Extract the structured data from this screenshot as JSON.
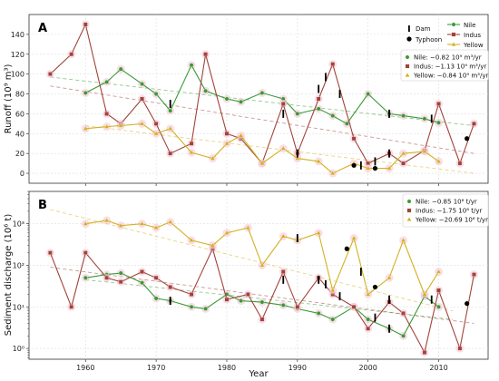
{
  "figure": {
    "shared_xlabel": "Year"
  },
  "chart_data": [
    {
      "type": "line",
      "panel": "A",
      "ylabel": "Runoff (10⁹ m³)",
      "xlim": [
        1952,
        2017
      ],
      "ylim": [
        -10,
        160
      ],
      "yticks": [
        0,
        20,
        40,
        60,
        80,
        100,
        120,
        140
      ],
      "xticks": [
        1960,
        1970,
        1980,
        1990,
        2000,
        2010
      ],
      "yscale": "linear",
      "grid": true,
      "series": [
        {
          "name": "Nile",
          "color": "#3a9a35",
          "marker": "circle",
          "x": [
            1960,
            1963,
            1965,
            1968,
            1970,
            1972,
            1975,
            1977,
            1980,
            1982,
            1985,
            1988,
            1990,
            1993,
            1995,
            1997,
            2000,
            2003,
            2005,
            2008,
            2010
          ],
          "y": [
            81,
            92,
            105,
            90,
            80,
            63,
            109,
            83,
            75,
            72,
            81,
            75,
            60,
            65,
            58,
            50,
            80,
            60,
            58,
            55,
            51
          ]
        },
        {
          "name": "Indus",
          "color": "#a0443a",
          "marker": "square",
          "x": [
            1955,
            1958,
            1960,
            1963,
            1965,
            1968,
            1970,
            1972,
            1975,
            1977,
            1980,
            1982,
            1985,
            1988,
            1990,
            1993,
            1995,
            1998,
            2000,
            2003,
            2005,
            2008,
            2010,
            2013,
            2015
          ],
          "y": [
            100,
            120,
            150,
            60,
            50,
            75,
            50,
            20,
            30,
            120,
            40,
            35,
            10,
            70,
            20,
            75,
            110,
            35,
            10,
            20,
            10,
            23,
            70,
            10,
            50
          ]
        },
        {
          "name": "Yellow",
          "color": "#d4b020",
          "marker": "triangle",
          "x": [
            1960,
            1963,
            1965,
            1968,
            1970,
            1972,
            1975,
            1978,
            1980,
            1982,
            1985,
            1988,
            1990,
            1993,
            1995,
            1998,
            2000,
            2003,
            2005,
            2008,
            2010
          ],
          "y": [
            45,
            47,
            48,
            50,
            40,
            45,
            21,
            15,
            30,
            38,
            10,
            25,
            15,
            12,
            0,
            10,
            5,
            5,
            20,
            22,
            12
          ]
        }
      ],
      "trendlines": [
        {
          "series": "Nile",
          "label": "Nile: −0.82 10⁹ m³/yr",
          "x": [
            1955,
            2015
          ],
          "y": [
            97,
            48
          ]
        },
        {
          "series": "Indus",
          "label": "Indus: −1.13 10⁹ m³/yr",
          "x": [
            1955,
            2015
          ],
          "y": [
            88,
            20
          ]
        },
        {
          "series": "Yellow",
          "label": "Yellow: −0.84 10⁹ m³/yr",
          "x": [
            1960,
            2015
          ],
          "y": [
            48,
            0
          ]
        }
      ],
      "dams": [
        {
          "x": 1972,
          "y": 70
        },
        {
          "x": 1988,
          "y": 60
        },
        {
          "x": 1990,
          "y": 20
        },
        {
          "x": 1993,
          "y": 85
        },
        {
          "x": 1994,
          "y": 97
        },
        {
          "x": 1996,
          "y": 80
        },
        {
          "x": 1999,
          "y": 8
        },
        {
          "x": 2001,
          "y": 12
        },
        {
          "x": 2003,
          "y": 20
        },
        {
          "x": 2003,
          "y": 60
        },
        {
          "x": 2009,
          "y": 55
        }
      ],
      "typhoons": [
        {
          "x": 1998,
          "y": 8
        },
        {
          "x": 2001,
          "y": 5
        },
        {
          "x": 2014,
          "y": 35
        }
      ],
      "legend_markers": {
        "dam": "Dam",
        "typhoon": "Typhoon"
      },
      "legend_placement": "top-right"
    },
    {
      "type": "line",
      "panel": "B",
      "ylabel": "Sediment discharge (10⁶ t)",
      "xlim": [
        1952,
        2017
      ],
      "ylim": [
        0.55,
        6000
      ],
      "yscale": "log",
      "yticks": [
        1,
        10,
        100,
        1000
      ],
      "ytick_labels": [
        "10⁰",
        "10¹",
        "10²",
        "10³"
      ],
      "xticks": [
        1960,
        1970,
        1980,
        1990,
        2000,
        2010
      ],
      "grid": true,
      "series": [
        {
          "name": "Nile",
          "color": "#3a9a35",
          "marker": "circle",
          "x": [
            1960,
            1963,
            1965,
            1968,
            1970,
            1972,
            1975,
            1977,
            1980,
            1982,
            1985,
            1988,
            1990,
            1993,
            1995,
            1998,
            2000,
            2003,
            2005,
            2008,
            2010
          ],
          "y": [
            50,
            60,
            65,
            38,
            16,
            14,
            10,
            9,
            20,
            14,
            13,
            11,
            9,
            7,
            5,
            10,
            5,
            3,
            2,
            18,
            10
          ]
        },
        {
          "name": "Indus",
          "color": "#a0443a",
          "marker": "square",
          "x": [
            1955,
            1958,
            1960,
            1963,
            1965,
            1968,
            1970,
            1972,
            1975,
            1978,
            1980,
            1983,
            1985,
            1988,
            1990,
            1993,
            1995,
            1998,
            2000,
            2003,
            2005,
            2008,
            2010,
            2013,
            2015
          ],
          "y": [
            200,
            10,
            200,
            50,
            40,
            70,
            50,
            30,
            20,
            250,
            15,
            20,
            5,
            70,
            10,
            50,
            20,
            10,
            3,
            13,
            7,
            0.8,
            25,
            1,
            60
          ]
        },
        {
          "name": "Yellow",
          "color": "#d4b020",
          "marker": "triangle",
          "x": [
            1960,
            1963,
            1965,
            1968,
            1970,
            1972,
            1975,
            1978,
            1980,
            1983,
            1985,
            1988,
            1990,
            1993,
            1995,
            1998,
            2000,
            2003,
            2005,
            2008,
            2010
          ],
          "y": [
            1000,
            1200,
            900,
            1000,
            800,
            1100,
            400,
            300,
            600,
            800,
            100,
            500,
            400,
            600,
            25,
            450,
            20,
            50,
            400,
            20,
            70
          ]
        }
      ],
      "trendlines": [
        {
          "series": "Nile",
          "label": "Nile: −0.85 10⁶ t/yr",
          "x": [
            1960,
            2012
          ],
          "y": [
            45,
            5
          ]
        },
        {
          "series": "Indus",
          "label": "Indus: −1.75 10⁶ t/yr",
          "x": [
            1955,
            2015
          ],
          "y": [
            90,
            4
          ]
        },
        {
          "series": "Yellow",
          "label": "Yellow: −20.69 10⁶ t/yr",
          "x": [
            1955,
            2012
          ],
          "y": [
            2200,
            8
          ]
        }
      ],
      "dams": [
        {
          "x": 1972,
          "y": 14
        },
        {
          "x": 1988,
          "y": 45
        },
        {
          "x": 1990,
          "y": 450
        },
        {
          "x": 1993,
          "y": 45
        },
        {
          "x": 1994,
          "y": 35
        },
        {
          "x": 1996,
          "y": 18
        },
        {
          "x": 1999,
          "y": 70
        },
        {
          "x": 2001,
          "y": 5.5
        },
        {
          "x": 2003,
          "y": 3
        },
        {
          "x": 2003,
          "y": 15
        },
        {
          "x": 2009,
          "y": 15
        }
      ],
      "typhoons": [
        {
          "x": 1997,
          "y": 250
        },
        {
          "x": 2001,
          "y": 30
        },
        {
          "x": 2014,
          "y": 12
        }
      ],
      "legend_placement": "top-right"
    }
  ]
}
